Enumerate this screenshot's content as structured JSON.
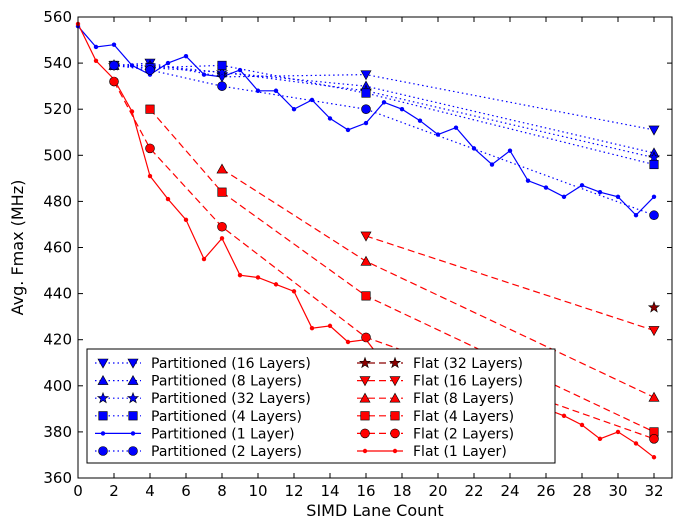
{
  "chart_data": {
    "type": "line",
    "xlabel": "SIMD Lane Count",
    "ylabel": "Avg. Fmax (MHz)",
    "xlim": [
      0,
      33
    ],
    "ylim": [
      360,
      560
    ],
    "xticks": [
      "0",
      "2",
      "4",
      "6",
      "8",
      "10",
      "12",
      "14",
      "16",
      "18",
      "20",
      "22",
      "24",
      "26",
      "28",
      "30",
      "32"
    ],
    "yticks": [
      "360",
      "380",
      "400",
      "420",
      "440",
      "460",
      "480",
      "500",
      "520",
      "540",
      "560"
    ],
    "grid": false,
    "legend_position": "bottom-left",
    "colors": {
      "blue": "#0000ff",
      "red": "#ff0000"
    },
    "series": [
      {
        "name": "Partitioned (16 Layers)",
        "color": "#0000ff",
        "style": "dotted",
        "marker": "triangle-down",
        "x": [
          2,
          4,
          8,
          16,
          32
        ],
        "y": [
          539,
          540,
          534,
          535,
          511
        ]
      },
      {
        "name": "Partitioned (8 Layers)",
        "color": "#0000ff",
        "style": "dotted",
        "marker": "triangle-up",
        "x": [
          2,
          4,
          8,
          16,
          32
        ],
        "y": [
          539,
          539,
          536,
          530,
          501
        ]
      },
      {
        "name": "Partitioned (32 Layers)",
        "color": "#0000ff",
        "style": "dotted",
        "marker": "star",
        "x": [
          2,
          4,
          8,
          16,
          32
        ],
        "y": [
          539,
          538,
          536,
          528,
          499
        ]
      },
      {
        "name": "Partitioned (4 Layers)",
        "color": "#0000ff",
        "style": "dotted",
        "marker": "square",
        "x": [
          2,
          4,
          8,
          16,
          32
        ],
        "y": [
          539,
          538,
          539,
          527,
          496
        ]
      },
      {
        "name": "Partitioned (1 Layer)",
        "color": "#0000ff",
        "style": "solid",
        "marker": "dot",
        "x": [
          0,
          1,
          2,
          3,
          4,
          5,
          6,
          7,
          8,
          9,
          10,
          11,
          12,
          13,
          14,
          15,
          16,
          17,
          18,
          19,
          20,
          21,
          22,
          23,
          24,
          25,
          26,
          27,
          28,
          29,
          30,
          31,
          32
        ],
        "y": [
          556,
          547,
          548,
          539,
          535,
          540,
          543,
          535,
          534,
          537,
          528,
          528,
          520,
          524,
          516,
          511,
          514,
          523,
          520,
          515,
          509,
          512,
          503,
          496,
          502,
          489,
          486,
          482,
          487,
          484,
          482,
          474,
          482
        ]
      },
      {
        "name": "Partitioned (2 Layers)",
        "color": "#0000ff",
        "style": "dotted",
        "marker": "circle",
        "x": [
          2,
          4,
          8,
          16,
          32
        ],
        "y": [
          539,
          537,
          530,
          520,
          474
        ]
      },
      {
        "name": "Flat (32 Layers)",
        "color": "#8b0000",
        "style": "dashed",
        "marker": "star",
        "x": [
          32
        ],
        "y": [
          434
        ]
      },
      {
        "name": "Flat (16 Layers)",
        "color": "#ff0000",
        "style": "dashed",
        "marker": "triangle-down",
        "x": [
          16,
          32
        ],
        "y": [
          465,
          424
        ]
      },
      {
        "name": "Flat (8 Layers)",
        "color": "#ff0000",
        "style": "dashed",
        "marker": "triangle-up",
        "x": [
          8,
          16,
          32
        ],
        "y": [
          494,
          454,
          395
        ]
      },
      {
        "name": "Flat (4 Layers)",
        "color": "#ff0000",
        "style": "dashed",
        "marker": "square",
        "x": [
          4,
          8,
          16,
          32
        ],
        "y": [
          520,
          484,
          439,
          380
        ]
      },
      {
        "name": "Flat (2 Layers)",
        "color": "#ff0000",
        "style": "dashed",
        "marker": "circle",
        "x": [
          2,
          4,
          8,
          16,
          32
        ],
        "y": [
          532,
          503,
          469,
          421,
          377
        ]
      },
      {
        "name": "Flat (1 Layer)",
        "color": "#ff0000",
        "style": "solid",
        "marker": "dot",
        "x": [
          0,
          1,
          2,
          3,
          4,
          5,
          6,
          7,
          8,
          9,
          10,
          11,
          12,
          13,
          14,
          15,
          16,
          17,
          18,
          19,
          20,
          21,
          22,
          23,
          24,
          25,
          26,
          27,
          28,
          29,
          30,
          31,
          32
        ],
        "y": [
          557,
          541,
          533,
          519,
          491,
          481,
          472,
          455,
          464,
          448,
          447,
          444,
          441,
          425,
          426,
          419,
          420,
          410,
          405,
          399,
          399,
          391,
          392,
          391,
          391,
          391,
          390,
          387,
          383,
          377,
          380,
          375,
          369
        ]
      }
    ]
  }
}
